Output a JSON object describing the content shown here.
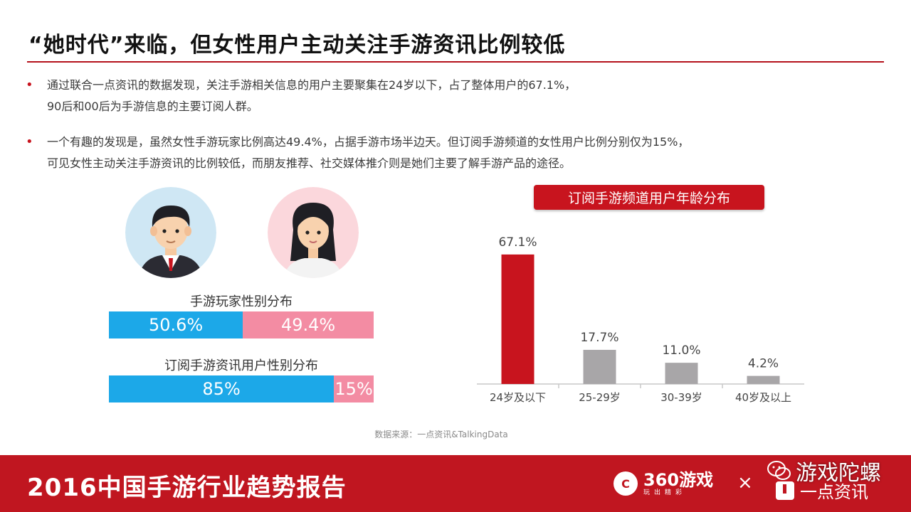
{
  "slide": {
    "title": "“她时代”来临，但女性用户主动关注手游资讯比例较低",
    "bullets": [
      {
        "lines": [
          "通过联合一点资讯的数据发现，关注手游相关信息的用户主要聚集在24岁以下，占了整体用户的67.1%，",
          "90后和00后为手游信息的主要订阅人群。"
        ]
      },
      {
        "lines": [
          "一个有趣的发现是，虽然女性手游玩家比例高达49.4%，占据手游市场半边天。但订阅手游频道的女性用户比例分别仅为15%，",
          "可见女性主动关注手游资讯的比例较低，而朋友推荐、社交媒体推介则是她们主要了解手游产品的途径。"
        ]
      }
    ]
  },
  "gender_bars": [
    {
      "caption": "手游玩家性别分布",
      "male": 0.506,
      "female": 0.494,
      "male_label": "50.6%",
      "female_label": "49.4%"
    },
    {
      "caption": "订阅手游资讯用户性别分布",
      "male": 0.85,
      "female": 0.15,
      "male_label": "85%",
      "female_label": "15%"
    }
  ],
  "colors": {
    "accent_red": "#c8141e",
    "male_blue": "#1ca8e8",
    "female_pink": "#f38ca3",
    "bar_gray": "#a8a6a8"
  },
  "chart_data": {
    "type": "bar",
    "title": "订阅手游频道用户年龄分布",
    "categories": [
      "24岁及以下",
      "25-29岁",
      "30-39岁",
      "40岁及以上"
    ],
    "values": [
      67.1,
      17.7,
      11.0,
      4.2
    ],
    "value_labels": [
      "67.1%",
      "17.7%",
      "11.0%",
      "4.2%"
    ],
    "highlight_index": 0,
    "ylim": [
      0,
      70
    ],
    "grid": false
  },
  "source": "数据来源：一点资讯&TalkingData",
  "footer": {
    "title": "2016中国手游行业趋势报告",
    "logo_360_mark": "C",
    "logo_360": "360游戏",
    "logo_360_sub": "玩出精彩",
    "cross": "×",
    "logo_yidian": "一点资讯",
    "watermark": "游戏陀螺"
  }
}
